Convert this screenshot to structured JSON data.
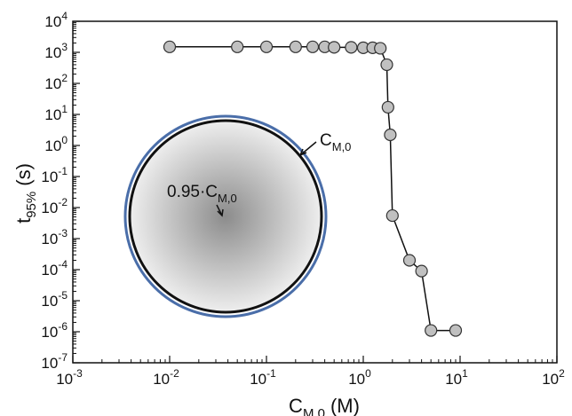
{
  "chart_data": {
    "type": "scatter",
    "xscale": "log",
    "yscale": "log",
    "xlim": [
      0.001,
      100
    ],
    "ylim": [
      1e-07,
      10000
    ],
    "grid": false,
    "xlabel": {
      "main": "C",
      "sub": "M,0",
      "unit": "(M)"
    },
    "ylabel": {
      "main": "t",
      "sub": "95%",
      "unit": "(s)"
    },
    "x_ticks": [
      {
        "value": 0.001,
        "base": "10",
        "exp": "-3"
      },
      {
        "value": 0.01,
        "base": "10",
        "exp": "-2"
      },
      {
        "value": 0.1,
        "base": "10",
        "exp": "-1"
      },
      {
        "value": 1,
        "base": "10",
        "exp": "0"
      },
      {
        "value": 10,
        "base": "10",
        "exp": "1"
      },
      {
        "value": 100,
        "base": "10",
        "exp": "2"
      }
    ],
    "y_ticks": [
      {
        "value": 1e-07,
        "base": "10",
        "exp": "-7"
      },
      {
        "value": 1e-06,
        "base": "10",
        "exp": "-6"
      },
      {
        "value": 1e-05,
        "base": "10",
        "exp": "-5"
      },
      {
        "value": 0.0001,
        "base": "10",
        "exp": "-4"
      },
      {
        "value": 0.001,
        "base": "10",
        "exp": "-3"
      },
      {
        "value": 0.01,
        "base": "10",
        "exp": "-2"
      },
      {
        "value": 0.1,
        "base": "10",
        "exp": "-1"
      },
      {
        "value": 1,
        "base": "10",
        "exp": "0"
      },
      {
        "value": 10,
        "base": "10",
        "exp": "1"
      },
      {
        "value": 100,
        "base": "10",
        "exp": "2"
      },
      {
        "value": 1000,
        "base": "10",
        "exp": "3"
      },
      {
        "value": 10000,
        "base": "10",
        "exp": "4"
      }
    ],
    "series": [
      {
        "x": [
          0.01,
          0.05,
          0.1,
          0.2,
          0.3,
          0.4,
          0.5,
          0.75,
          1.0,
          1.25,
          1.5,
          1.75,
          1.8,
          1.9,
          2.0,
          3.0,
          4.0,
          5.0,
          9.0
        ],
        "y": [
          1500,
          1500,
          1500,
          1500,
          1500,
          1500,
          1450,
          1450,
          1400,
          1400,
          1350,
          400,
          17,
          2.2,
          0.0055,
          0.0002,
          9e-05,
          1.1e-06,
          1.1e-06
        ]
      }
    ],
    "marker_color": "#c0c0c0",
    "marker_edge": "#333333",
    "line_color": "#111111",
    "inset": {
      "outer_label": {
        "main": "C",
        "sub": "M,0"
      },
      "inner_label": {
        "main": "0.95·C",
        "sub": "M,0"
      },
      "outer_ring_color": "#4a6ea9",
      "inner_ring_color": "#111111",
      "fill_center": "#8c8c8c",
      "fill_edge": "#eeeeee"
    }
  }
}
